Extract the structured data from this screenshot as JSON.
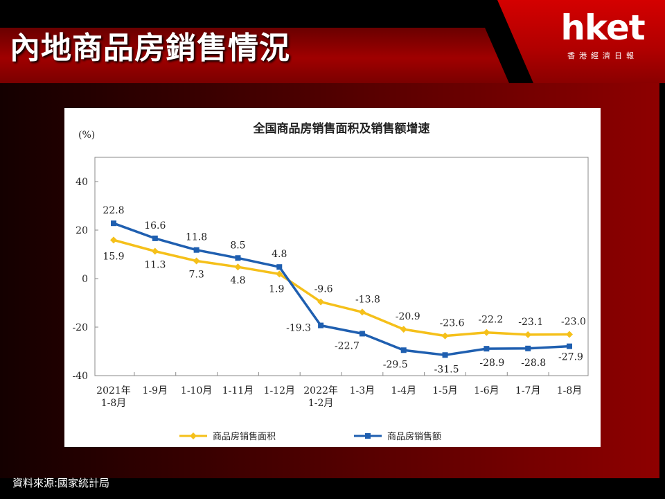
{
  "slide": {
    "title": "內地商品房銷售情況",
    "logo_word": "hket",
    "logo_sub": "香港經濟日報",
    "source": "資料來源:國家統計局"
  },
  "colors": {
    "area_series": "#f5c01a",
    "amount_series": "#1f5fb0",
    "title_bar": "#a00000",
    "logo_panel": "#d40000"
  },
  "chart_data": {
    "type": "line",
    "title": "全国商品房销售面积及销售额增速",
    "ylabel": "(%)",
    "ylim": [
      -40,
      40
    ],
    "yticks": [
      40,
      20,
      0,
      -20,
      -40
    ],
    "grid": false,
    "legend_position": "bottom",
    "categories": [
      [
        "2021年",
        "1-8月"
      ],
      [
        "1-9月"
      ],
      [
        "1-10月"
      ],
      [
        "1-11月"
      ],
      [
        "1-12月"
      ],
      [
        "2022年",
        "1-2月"
      ],
      [
        "1-3月"
      ],
      [
        "1-4月"
      ],
      [
        "1-5月"
      ],
      [
        "1-6月"
      ],
      [
        "1-7月"
      ],
      [
        "1-8月"
      ]
    ],
    "series": [
      {
        "name": "商品房销售面积",
        "color": "#f5c01a",
        "marker": "diamond",
        "values": [
          15.9,
          11.3,
          7.3,
          4.8,
          1.9,
          -9.6,
          -13.8,
          -20.9,
          -23.6,
          -22.2,
          -23.1,
          -23.0
        ],
        "labels": [
          "15.9",
          "11.3",
          "7.3",
          "4.8",
          "1.9",
          "-9.6",
          "-13.8",
          "-20.9",
          "-23.6",
          "-22.2",
          "-23.1",
          "-23.0"
        ]
      },
      {
        "name": "商品房销售额",
        "color": "#1f5fb0",
        "marker": "square",
        "values": [
          22.8,
          16.6,
          11.8,
          8.5,
          4.8,
          -19.3,
          -22.7,
          -29.5,
          -31.5,
          -28.9,
          -28.8,
          -27.9
        ],
        "labels": [
          "22.8",
          "16.6",
          "11.8",
          "8.5",
          "4.8",
          "-19.3",
          "-22.7",
          "-29.5",
          "-31.5",
          "-28.9",
          "-28.8",
          "-27.9"
        ]
      }
    ]
  }
}
